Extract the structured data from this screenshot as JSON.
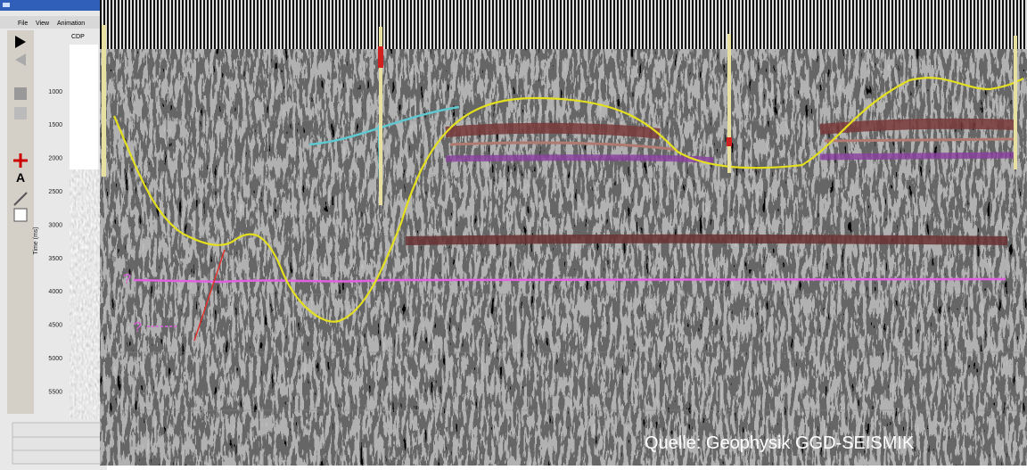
{
  "window": {
    "menu": [
      "File",
      "View",
      "Animation"
    ],
    "cdp_label": "CDP",
    "time_axis": {
      "label": "Time (ms)",
      "ticks": [
        "1000",
        "1500",
        "2000",
        "2500",
        "3000",
        "3500",
        "4000",
        "4500",
        "5000",
        "5500"
      ]
    }
  },
  "section": {
    "markers": [
      "?",
      "?"
    ],
    "caption": "Quelle: Geophysik GGD-SEISMIK"
  }
}
